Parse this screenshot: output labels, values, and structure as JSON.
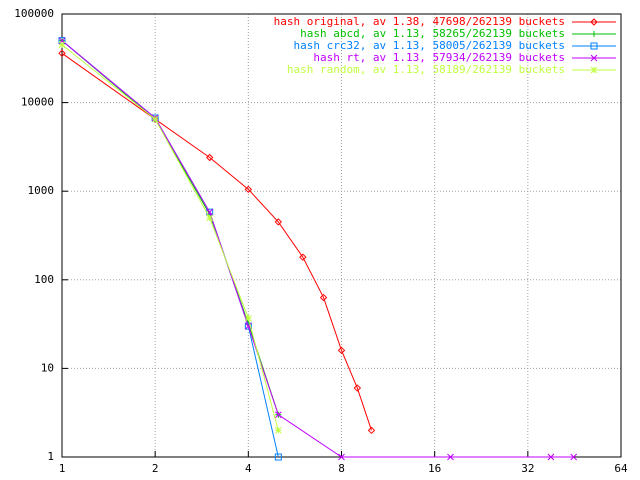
{
  "chart_data": {
    "type": "line",
    "xlog": 2,
    "ylog": 10,
    "grid": true,
    "legend": "top-right",
    "xlim": [
      1,
      64
    ],
    "xticks": [
      1,
      2,
      4,
      8,
      16,
      32,
      64
    ],
    "ylim": [
      1,
      100000
    ],
    "yticks": [
      1,
      10,
      100,
      1000,
      10000,
      100000
    ],
    "series": [
      {
        "name": "hash original, av 1.38, 47698/262139 buckets",
        "color": "#ff0000",
        "marker": "diamond",
        "x": [
          1,
          2,
          3,
          4,
          5,
          6,
          7,
          8,
          9,
          10
        ],
        "values": [
          36000,
          6500,
          2400,
          1050,
          450,
          180,
          63,
          16,
          6,
          2
        ]
      },
      {
        "name": "hash abcd, av 1.13, 58265/262139 buckets",
        "color": "#00c000",
        "marker": "plus",
        "x": [
          1,
          2,
          3,
          4,
          5
        ],
        "values": [
          50000,
          6500,
          550,
          32,
          3
        ]
      },
      {
        "name": "hash crc32, av 1.13, 58005/262139 buckets",
        "color": "#0080ff",
        "marker": "square",
        "x": [
          1,
          2,
          3,
          4,
          5
        ],
        "values": [
          50000,
          6700,
          580,
          30,
          1
        ]
      },
      {
        "name": "hash rt, av 1.13, 57934/262139 buckets",
        "color": "#c000ff",
        "marker": "cross",
        "x": [
          1,
          2,
          3,
          4,
          5,
          8,
          18,
          38,
          45
        ],
        "values": [
          50000,
          6700,
          580,
          30,
          3,
          1,
          1,
          1,
          1
        ]
      },
      {
        "name": "hash random, av 1.13, 58189/262139 buckets",
        "color": "#c0ff40",
        "marker": "star",
        "x": [
          1,
          2,
          3,
          4,
          5
        ],
        "values": [
          45000,
          6500,
          500,
          37,
          2
        ]
      }
    ]
  }
}
